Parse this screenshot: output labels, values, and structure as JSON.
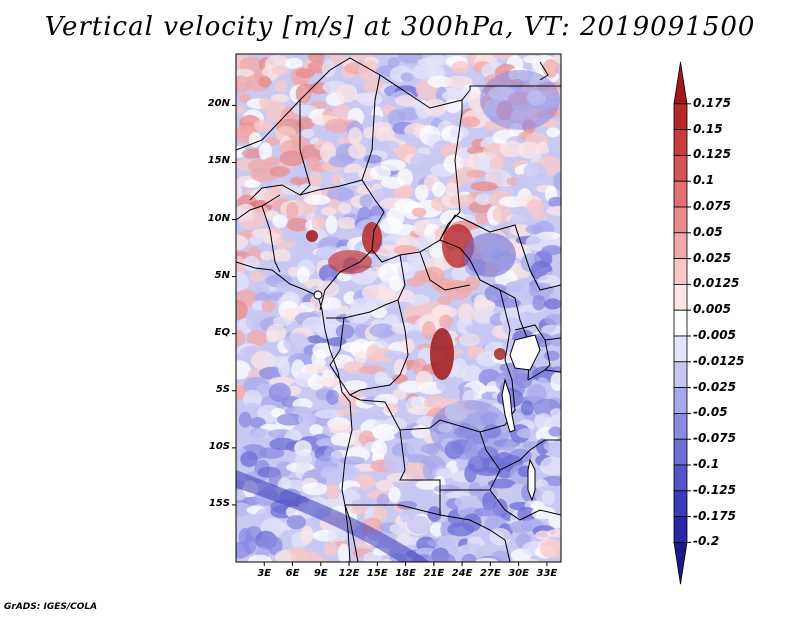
{
  "title": "Vertical velocity [m/s] at 300hPa, VT: 2019091500",
  "credit": "GrADS: IGES/COLA",
  "map": {
    "variable": "Vertical velocity",
    "units": "m/s",
    "level": "300hPa",
    "valid_time": "2019091500",
    "lat_labels": [
      "20N",
      "15N",
      "10N",
      "5N",
      "EQ",
      "5S",
      "10S",
      "15S"
    ],
    "lat_values": [
      20,
      15,
      10,
      5,
      0,
      -5,
      -10,
      -15
    ],
    "lon_labels": [
      "3E",
      "6E",
      "9E",
      "12E",
      "15E",
      "18E",
      "21E",
      "24E",
      "27E",
      "30E",
      "33E"
    ],
    "lon_values": [
      3,
      6,
      9,
      12,
      15,
      18,
      21,
      24,
      27,
      30,
      33
    ],
    "lat_range": [
      -20,
      24.5
    ],
    "lon_range": [
      0,
      34.5
    ]
  },
  "colorbar": {
    "labels": [
      "0.175",
      "0.15",
      "0.125",
      "0.1",
      "0.075",
      "0.05",
      "0.025",
      "0.0125",
      "0.005",
      "-0.005",
      "-0.0125",
      "-0.025",
      "-0.05",
      "-0.075",
      "-0.1",
      "-0.125",
      "-0.175",
      "-0.2"
    ],
    "colors": [
      "#a01818",
      "#b82828",
      "#c83c3c",
      "#d65454",
      "#e27070",
      "#ea8c8c",
      "#f2a8a8",
      "#f8c8c8",
      "#fce6e6",
      "#ffffff",
      "#e4e4fa",
      "#c6c6f4",
      "#a8a8ec",
      "#8a8ae2",
      "#6e6ed6",
      "#5454c8",
      "#3c3cb8",
      "#2828a4",
      "#1a1a8c"
    ]
  }
}
